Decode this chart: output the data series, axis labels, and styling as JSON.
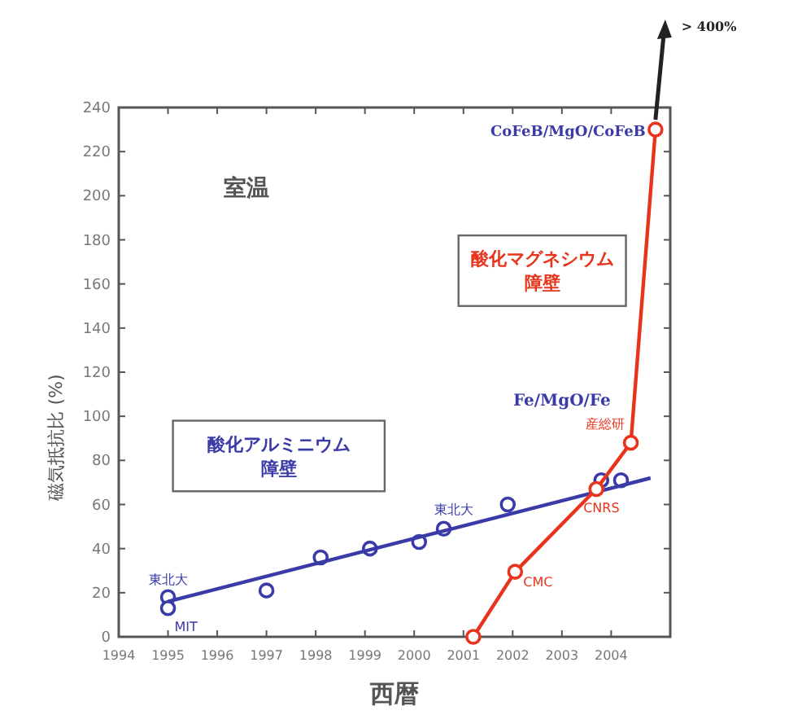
{
  "chart_data": {
    "type": "line",
    "xlabel": "西暦",
    "ylabel": "磁気抵抗比 (%)",
    "xlim": [
      1994,
      2005.2
    ],
    "xticks": [
      1994,
      1995,
      1996,
      1997,
      1998,
      1999,
      2000,
      2001,
      2002,
      2003,
      2004
    ],
    "ylim": [
      0,
      240
    ],
    "yticks": [
      0,
      20,
      40,
      60,
      80,
      100,
      120,
      140,
      160,
      180,
      200,
      220,
      240
    ],
    "grid": false,
    "series": [
      {
        "name": "酸化アルミニウム障壁",
        "type": "scatter",
        "marker": "circle",
        "color": "#3a3aa8",
        "x": [
          1995,
          1995,
          1997,
          1998.1,
          1999.1,
          2000.1,
          2000.6,
          2001.9,
          2003.8,
          2004.2
        ],
        "values": [
          18,
          13,
          21,
          36,
          40,
          43,
          49,
          60,
          71,
          71
        ]
      },
      {
        "marker": "none",
        "line_style": "solid",
        "color": "#3a3aa8",
        "x": [
          1995,
          2004.8
        ],
        "values": [
          16,
          72
        ]
      },
      {
        "name": "酸化マグネシウム障壁",
        "type": "line",
        "marker": "circle",
        "line_style": "solid",
        "color": "#e8341c",
        "x": [
          2001.2,
          2002.05,
          2003.7,
          2004.4,
          2004.9
        ],
        "values": [
          0,
          29.5,
          67,
          88,
          230
        ]
      }
    ],
    "annotations": [
      "室温",
      {
        "text": "CoFeB/MgO/CoFeB",
        "x": 2004.9,
        "y": 230
      },
      "Fe/MgO/Fe",
      "> 400%",
      {
        "text": "東北大",
        "x": 1995,
        "y": 18
      },
      {
        "text": "MIT",
        "x": 1995,
        "y": 13
      },
      {
        "text": "東北大",
        "x": 2000.6,
        "y": 49
      },
      {
        "text": "産総研",
        "x": 2004.4,
        "y": 88
      },
      {
        "text": "CNRS",
        "x": 2003.7,
        "y": 67
      },
      {
        "text": "CMC",
        "x": 2002.05,
        "y": 29.5
      }
    ]
  }
}
